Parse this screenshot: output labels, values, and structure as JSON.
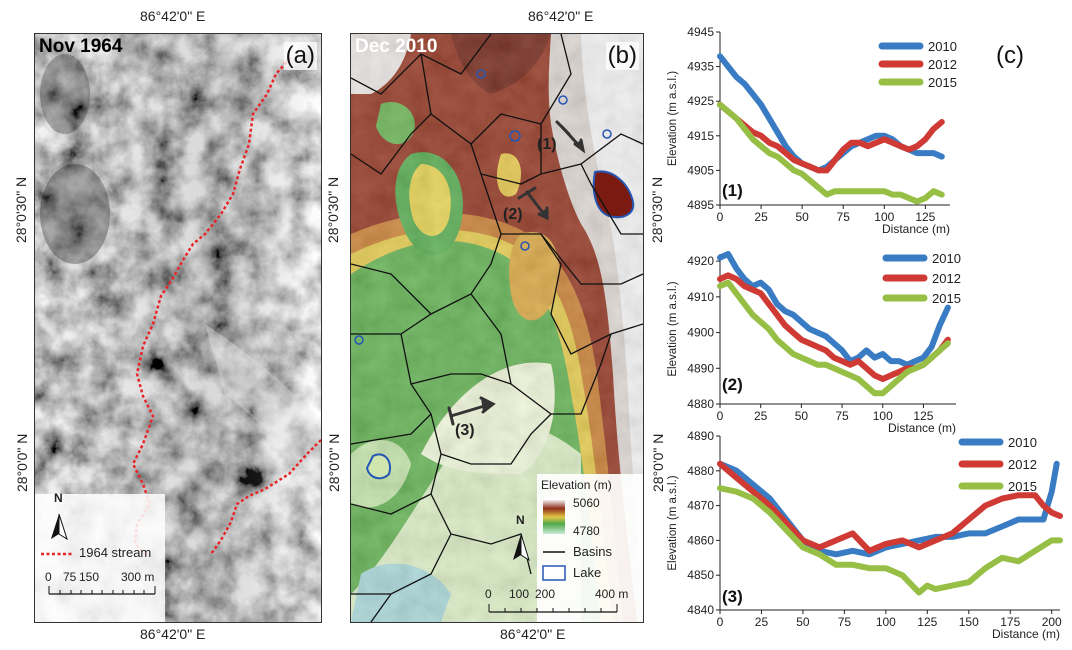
{
  "panel_a": {
    "date": "Nov 1964",
    "label": "(a)",
    "lon_top": "86°42'0\" E",
    "lon_bottom": "86°42'0\" E",
    "lat_30": "28°0'30\" N",
    "lat_0": "28°0'0\" N",
    "legend_stream": "1964 stream",
    "north": "N",
    "scale_labels": [
      "0",
      "75",
      "150",
      "300 m"
    ],
    "stream_color": "#e8262a"
  },
  "panel_b": {
    "date": "Dec 2010",
    "label": "(b)",
    "lon_top": "86°42'0\" E",
    "lon_bottom": "86°42'0\" E",
    "lat_30": "28°0'30\" N",
    "lat_0": "28°0'0\" N",
    "profile_labels": [
      "(1)",
      "(2)",
      "(3)"
    ],
    "legend_title": "Elevation (m)",
    "legend_max": "5060",
    "legend_min": "4780",
    "legend_basins": "Basins",
    "legend_lake": "Lake",
    "north": "N",
    "scale_labels": [
      "0",
      "100",
      "200",
      "400 m"
    ],
    "lake_color": "#2556b3"
  },
  "panel_c": {
    "label": "(c)",
    "series_colors": {
      "2010": "#3a7cc3",
      "2012": "#cf3a34",
      "2015": "#97bf45"
    }
  },
  "chart_data": [
    {
      "type": "line",
      "id": "(1)",
      "xlabel": "Distance (m)",
      "ylabel": "Elevation (m a.s.l.)",
      "xlim": [
        0,
        140
      ],
      "ylim": [
        4895,
        4945
      ],
      "xticks": [
        0,
        25,
        50,
        75,
        100,
        125
      ],
      "yticks": [
        4895,
        4905,
        4915,
        4925,
        4935,
        4945
      ],
      "series": [
        {
          "name": "2010",
          "x": [
            0,
            5,
            10,
            15,
            20,
            25,
            30,
            35,
            40,
            45,
            50,
            55,
            60,
            65,
            70,
            75,
            80,
            85,
            90,
            95,
            100,
            105,
            110,
            115,
            120,
            125,
            130,
            135
          ],
          "y": [
            4938,
            4935,
            4932,
            4930,
            4927,
            4924,
            4920,
            4916,
            4912,
            4909,
            4907,
            4906,
            4905,
            4906,
            4908,
            4910,
            4912,
            4913,
            4914,
            4915,
            4915,
            4914,
            4912,
            4911,
            4910,
            4910,
            4910,
            4909
          ]
        },
        {
          "name": "2012",
          "x": [
            0,
            5,
            10,
            15,
            20,
            25,
            30,
            35,
            40,
            45,
            50,
            55,
            60,
            65,
            70,
            75,
            80,
            85,
            90,
            95,
            100,
            105,
            110,
            115,
            120,
            125,
            130,
            135
          ],
          "y": [
            4924,
            4922,
            4920,
            4918,
            4916,
            4915,
            4913,
            4912,
            4910,
            4908,
            4907,
            4906,
            4905,
            4905,
            4908,
            4911,
            4913,
            4913,
            4912,
            4913,
            4914,
            4913,
            4912,
            4911,
            4912,
            4914,
            4917,
            4919
          ]
        },
        {
          "name": "2015",
          "x": [
            0,
            5,
            10,
            15,
            20,
            25,
            30,
            35,
            40,
            45,
            50,
            55,
            60,
            65,
            70,
            75,
            80,
            85,
            90,
            95,
            100,
            105,
            110,
            115,
            120,
            125,
            130,
            135
          ],
          "y": [
            4924,
            4922,
            4920,
            4917,
            4914,
            4912,
            4910,
            4909,
            4907,
            4905,
            4904,
            4902,
            4900,
            4898,
            4899,
            4899,
            4899,
            4899,
            4899,
            4899,
            4899,
            4898,
            4898,
            4897,
            4896,
            4897,
            4899,
            4898
          ]
        }
      ]
    },
    {
      "type": "line",
      "id": "(2)",
      "xlabel": "Distance (m)",
      "ylabel": "Elevation (m a.s.l.)",
      "xlim": [
        0,
        145
      ],
      "ylim": [
        4880,
        4922
      ],
      "xticks": [
        0,
        25,
        50,
        75,
        100,
        125
      ],
      "yticks": [
        4880,
        4890,
        4900,
        4910,
        4920
      ],
      "series": [
        {
          "name": "2010",
          "x": [
            0,
            5,
            10,
            15,
            20,
            25,
            30,
            35,
            40,
            45,
            50,
            55,
            60,
            65,
            70,
            75,
            80,
            85,
            90,
            95,
            100,
            105,
            110,
            115,
            120,
            125,
            130,
            135,
            140
          ],
          "y": [
            4921,
            4922,
            4918,
            4915,
            4913,
            4914,
            4912,
            4908,
            4906,
            4905,
            4903,
            4901,
            4900,
            4899,
            4897,
            4895,
            4892,
            4893,
            4895,
            4893,
            4894,
            4892,
            4892,
            4891,
            4892,
            4893,
            4896,
            4902,
            4907
          ]
        },
        {
          "name": "2012",
          "x": [
            0,
            5,
            10,
            15,
            20,
            25,
            30,
            35,
            40,
            45,
            50,
            55,
            60,
            65,
            70,
            75,
            80,
            85,
            90,
            95,
            100,
            105,
            110,
            115,
            120,
            125,
            130,
            135,
            140
          ],
          "y": [
            4915,
            4916,
            4915,
            4913,
            4912,
            4911,
            4908,
            4905,
            4902,
            4900,
            4898,
            4897,
            4896,
            4895,
            4893,
            4892,
            4891,
            4892,
            4890,
            4888,
            4887,
            4888,
            4889,
            4890,
            4890,
            4891,
            4893,
            4895,
            4898
          ]
        },
        {
          "name": "2015",
          "x": [
            0,
            5,
            10,
            15,
            20,
            25,
            30,
            35,
            40,
            45,
            50,
            55,
            60,
            65,
            70,
            75,
            80,
            85,
            90,
            95,
            100,
            105,
            110,
            115,
            120,
            125,
            130,
            135,
            140
          ],
          "y": [
            4913,
            4914,
            4911,
            4908,
            4905,
            4903,
            4901,
            4898,
            4896,
            4894,
            4893,
            4892,
            4891,
            4891,
            4890,
            4889,
            4888,
            4887,
            4885,
            4883,
            4883,
            4885,
            4887,
            4889,
            4890,
            4891,
            4893,
            4895,
            4897
          ]
        }
      ]
    },
    {
      "type": "line",
      "id": "(3)",
      "xlabel": "Distance (m)",
      "ylabel": "Elevation (m a.s.l.)",
      "xlim": [
        0,
        205
      ],
      "ylim": [
        4840,
        4890
      ],
      "xticks": [
        0,
        25,
        50,
        75,
        100,
        125,
        150,
        175,
        200
      ],
      "yticks": [
        4840,
        4850,
        4860,
        4870,
        4880,
        4890
      ],
      "series": [
        {
          "name": "2010",
          "x": [
            0,
            10,
            20,
            30,
            40,
            50,
            60,
            70,
            80,
            90,
            100,
            110,
            120,
            130,
            140,
            150,
            160,
            170,
            180,
            190,
            195,
            200,
            203
          ],
          "y": [
            4882,
            4880,
            4876,
            4872,
            4866,
            4860,
            4857,
            4856,
            4857,
            4856,
            4858,
            4859,
            4860,
            4861,
            4861,
            4862,
            4862,
            4864,
            4866,
            4866,
            4866,
            4874,
            4882
          ]
        },
        {
          "name": "2012",
          "x": [
            0,
            10,
            20,
            30,
            40,
            50,
            60,
            70,
            80,
            90,
            100,
            110,
            120,
            130,
            140,
            150,
            160,
            170,
            180,
            190,
            195,
            200,
            205
          ],
          "y": [
            4882,
            4878,
            4874,
            4870,
            4865,
            4860,
            4858,
            4860,
            4862,
            4857,
            4859,
            4860,
            4858,
            4860,
            4862,
            4866,
            4870,
            4872,
            4873,
            4873,
            4870,
            4868,
            4867
          ]
        },
        {
          "name": "2015",
          "x": [
            0,
            10,
            20,
            30,
            40,
            50,
            60,
            70,
            80,
            90,
            100,
            110,
            120,
            125,
            130,
            140,
            150,
            160,
            170,
            180,
            190,
            200,
            205
          ],
          "y": [
            4875,
            4874,
            4872,
            4868,
            4863,
            4858,
            4856,
            4853,
            4853,
            4852,
            4852,
            4850,
            4845,
            4847,
            4846,
            4847,
            4848,
            4852,
            4855,
            4854,
            4857,
            4860,
            4860
          ]
        }
      ]
    }
  ]
}
